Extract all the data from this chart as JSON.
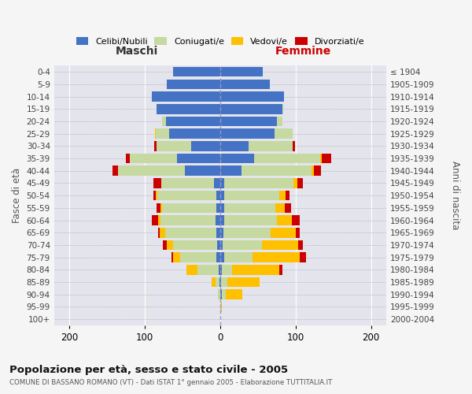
{
  "age_groups": [
    "100+",
    "95-99",
    "90-94",
    "85-89",
    "80-84",
    "75-79",
    "70-74",
    "65-69",
    "60-64",
    "55-59",
    "50-54",
    "45-49",
    "40-44",
    "35-39",
    "30-34",
    "25-29",
    "20-24",
    "15-19",
    "10-14",
    "5-9",
    "0-4"
  ],
  "birth_years": [
    "≤ 1904",
    "1905-1909",
    "1910-1914",
    "1915-1919",
    "1920-1924",
    "1925-1929",
    "1930-1934",
    "1935-1939",
    "1940-1944",
    "1945-1949",
    "1950-1954",
    "1955-1959",
    "1960-1964",
    "1965-1969",
    "1970-1974",
    "1975-1979",
    "1980-1984",
    "1985-1989",
    "1990-1994",
    "1995-1999",
    "2000-2004"
  ],
  "male": {
    "celibi": [
      0,
      0,
      0,
      1,
      2,
      5,
      4,
      5,
      6,
      5,
      5,
      8,
      47,
      57,
      38,
      68,
      72,
      84,
      90,
      71,
      62
    ],
    "coniugati": [
      0,
      0,
      3,
      5,
      28,
      48,
      58,
      68,
      73,
      72,
      78,
      70,
      88,
      63,
      46,
      17,
      5,
      0,
      0,
      0,
      0
    ],
    "vedovi": [
      0,
      0,
      0,
      5,
      15,
      9,
      9,
      7,
      3,
      2,
      2,
      0,
      0,
      0,
      0,
      1,
      0,
      0,
      0,
      0,
      0
    ],
    "divorziati": [
      0,
      0,
      0,
      0,
      0,
      2,
      5,
      2,
      8,
      5,
      3,
      10,
      8,
      5,
      3,
      0,
      0,
      0,
      0,
      0,
      0
    ]
  },
  "female": {
    "nubili": [
      0,
      0,
      2,
      1,
      2,
      5,
      3,
      4,
      5,
      5,
      5,
      5,
      28,
      45,
      38,
      72,
      75,
      82,
      85,
      66,
      56
    ],
    "coniugate": [
      0,
      1,
      5,
      9,
      14,
      38,
      52,
      63,
      70,
      68,
      73,
      92,
      93,
      88,
      58,
      24,
      7,
      2,
      0,
      0,
      0
    ],
    "vedove": [
      0,
      1,
      22,
      42,
      62,
      62,
      48,
      33,
      20,
      13,
      9,
      5,
      3,
      2,
      0,
      0,
      0,
      0,
      0,
      0,
      0
    ],
    "divorziate": [
      0,
      0,
      0,
      0,
      5,
      9,
      7,
      5,
      10,
      8,
      5,
      8,
      10,
      12,
      3,
      0,
      0,
      0,
      0,
      0,
      0
    ]
  },
  "colors": {
    "celibi": "#4472c4",
    "coniugati": "#c5d9a0",
    "vedovi": "#ffc000",
    "divorziati": "#cc0000"
  },
  "xlim": [
    -220,
    220
  ],
  "xticks": [
    -200,
    -100,
    0,
    100,
    200
  ],
  "xticklabels": [
    "200",
    "100",
    "0",
    "100",
    "200"
  ],
  "title_main": "Popolazione per età, sesso e stato civile - 2005",
  "title_sub": "COMUNE DI BASSANO ROMANO (VT) - Dati ISTAT 1° gennaio 2005 - Elaborazione TUTTITALIA.IT",
  "ylabel_left": "Fasce di età",
  "ylabel_right": "Anni di nascita",
  "label_maschi": "Maschi",
  "label_femmine": "Femmine",
  "legend_labels": [
    "Celibi/Nubili",
    "Coniugati/e",
    "Vedovi/e",
    "Divorziati/e"
  ],
  "fig_bg_color": "#f5f5f5",
  "plot_bg_color": "#e4e4ec"
}
